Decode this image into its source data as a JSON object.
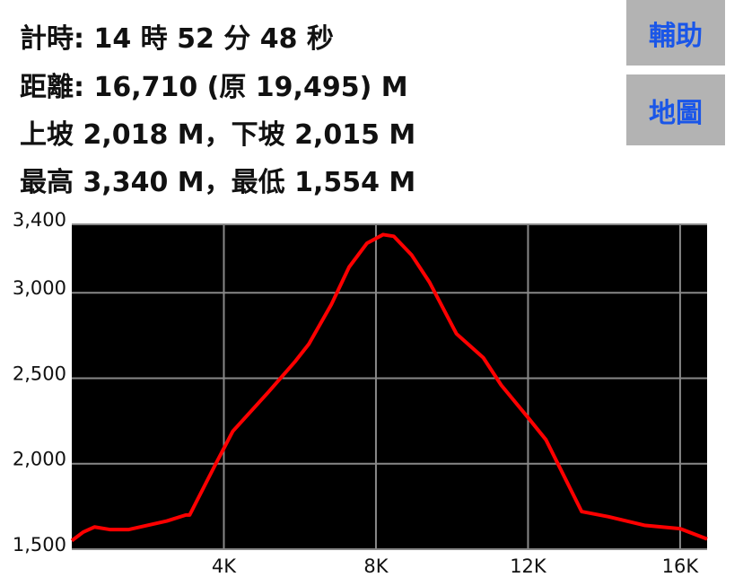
{
  "info": {
    "lines": [
      "計時: 14 時 52 分 48 秒",
      "距離: 16,710 (原 19,495) M",
      "上坡 2,018 M，下坡 2,015 M",
      "最高 3,340 M，最低 1,554 M"
    ]
  },
  "buttons": [
    "輔助",
    "地圖"
  ],
  "chart_data": {
    "type": "line",
    "series": [
      {
        "color": "#ff0000",
        "x": [
          0,
          300,
          600,
          1000,
          1500,
          2000,
          2500,
          3000,
          3100,
          3765,
          4235,
          5176,
          5882,
          6235,
          6824,
          7294,
          7765,
          8188,
          8470,
          8941,
          9412,
          10118,
          10824,
          11294,
          12000,
          12471,
          12941,
          13412,
          14118,
          15059,
          16000,
          16710
        ],
        "values": [
          1550,
          1600,
          1630,
          1615,
          1615,
          1640,
          1665,
          1700,
          1700,
          1990,
          2190,
          2420,
          2600,
          2700,
          2930,
          3150,
          3290,
          3340,
          3330,
          3220,
          3060,
          2760,
          2620,
          2460,
          2270,
          2140,
          1930,
          1720,
          1690,
          1640,
          1620,
          1560
        ]
      }
    ],
    "xlim": [
      0,
      16710
    ],
    "xticks": [
      {
        "value": 4000,
        "label": "4K"
      },
      {
        "value": 8000,
        "label": "8K"
      },
      {
        "value": 12000,
        "label": "12K"
      },
      {
        "value": 16000,
        "label": "16K"
      }
    ],
    "ylim": [
      1500,
      3400
    ],
    "yticks": [
      {
        "value": 1500,
        "label": "1,500"
      },
      {
        "value": 2000,
        "label": "2,000"
      },
      {
        "value": 2500,
        "label": "2,500"
      },
      {
        "value": 3000,
        "label": "3,000"
      },
      {
        "value": 3400,
        "label": "3,400"
      }
    ],
    "grid": true
  }
}
